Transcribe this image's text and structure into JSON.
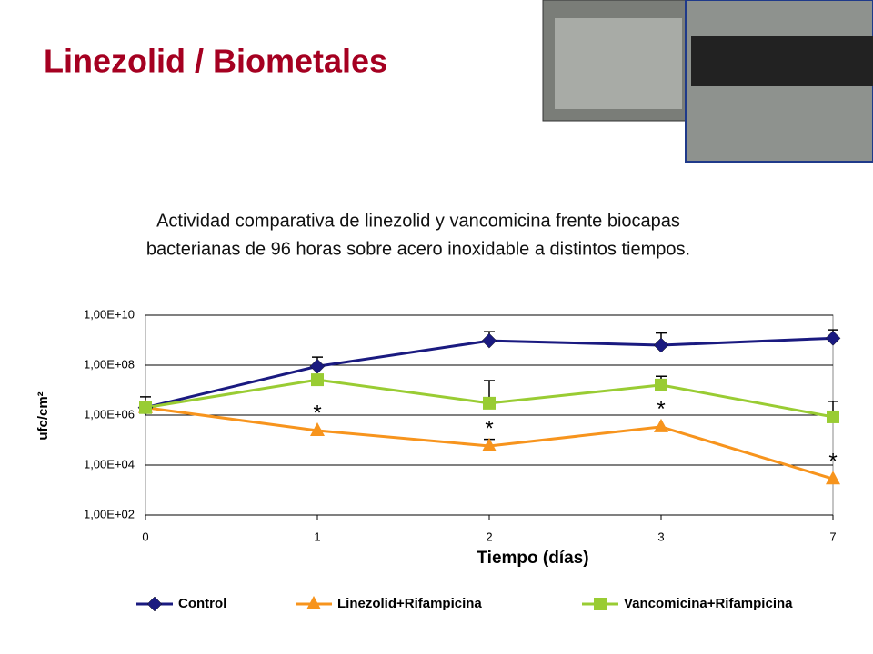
{
  "slide": {
    "title": "Linezolid / Biometales",
    "description": [
      "Actividad comparativa de linezolid y vancomicina frente biocapas",
      "bacterianas de  96 horas sobre acero inoxidable a distintos tiempos."
    ]
  },
  "chart_data": {
    "type": "line",
    "log_scale": true,
    "grid": true,
    "x_label": "Tiempo (días)",
    "y_label": "ufc/cm²",
    "categories": [
      "0",
      "1",
      "2",
      "3",
      "7"
    ],
    "ylim": [
      100,
      10000000000
    ],
    "yticks": [
      {
        "value": 100,
        "label": "1,00E+02"
      },
      {
        "value": 10000,
        "label": "1,00E+04"
      },
      {
        "value": 1000000,
        "label": "1,00E+06"
      },
      {
        "value": 100000000,
        "label": "1,00E+08"
      },
      {
        "value": 10000000000,
        "label": "1,00E+10"
      }
    ],
    "legend": "bottom",
    "series": [
      {
        "name": "Control",
        "color": "#1a1a80",
        "marker": "diamond",
        "values": [
          2000000,
          90000000,
          950000000,
          630000000,
          1200000000
        ],
        "errors": [
          3400000,
          120000000,
          1250000000,
          1300000000,
          1400000000
        ]
      },
      {
        "name": "Linezolid+Rifampicina",
        "color": "#f7941d",
        "marker": "triangle",
        "values": [
          2000000,
          240000,
          58000,
          340000,
          2800
        ],
        "errors": [
          null,
          null,
          50000,
          null,
          null
        ]
      },
      {
        "name": "Vancomicina+Rifampicina",
        "color": "#99cc33",
        "marker": "square",
        "values": [
          2000000,
          26000000,
          3000000,
          16000000,
          850000
        ],
        "errors": [
          null,
          null,
          21000000,
          20000000,
          2700000
        ]
      }
    ],
    "annotations": [
      {
        "text": "*",
        "category": "1"
      },
      {
        "text": "*",
        "category": "2"
      },
      {
        "text": "*",
        "category": "3"
      },
      {
        "text": "*",
        "category": "7"
      }
    ]
  }
}
